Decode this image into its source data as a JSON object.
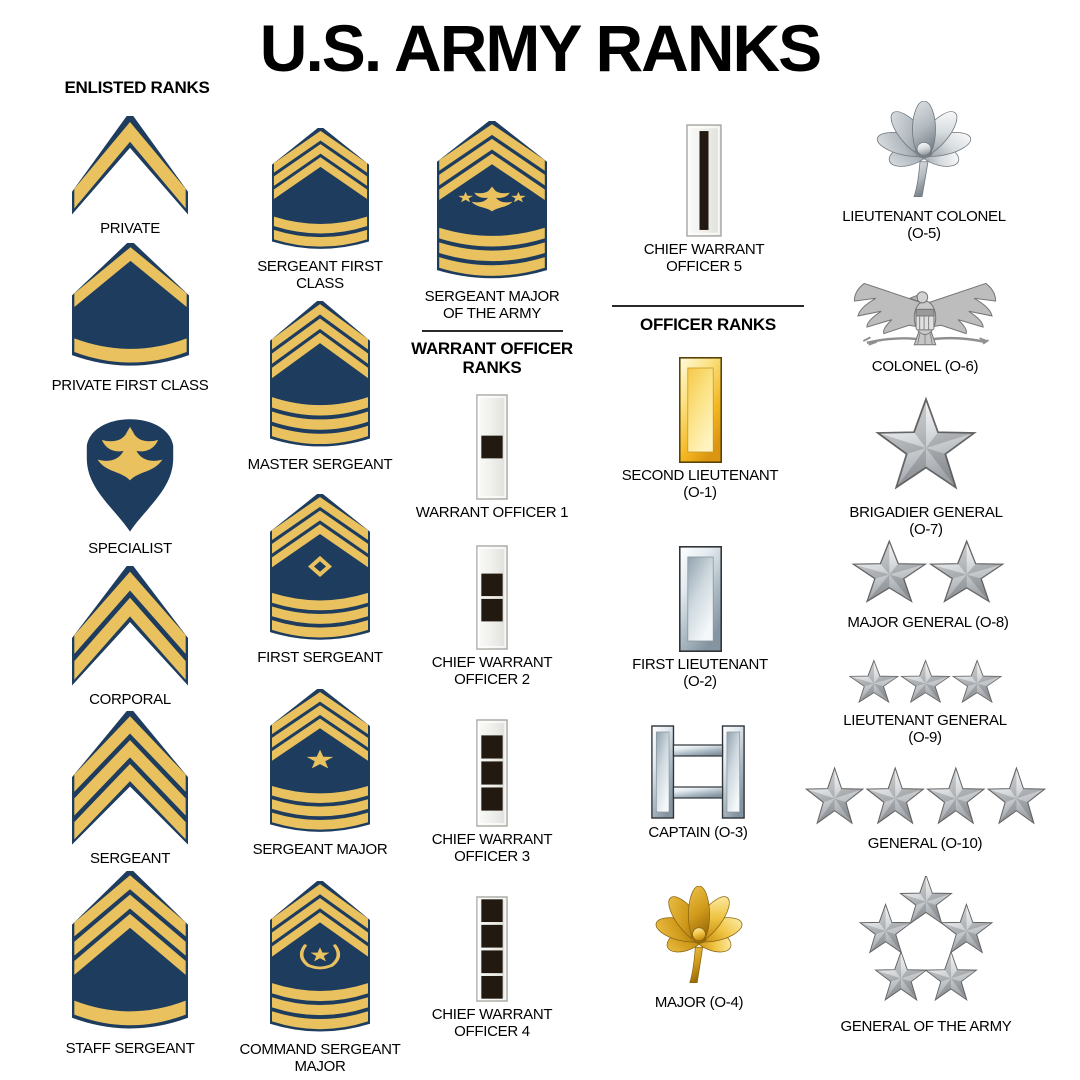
{
  "title": "U.S. ARMY RANKS",
  "colors": {
    "navy": "#1e3c5e",
    "gold": "#e9c25f",
    "black_square": "#221910",
    "silver_light": "#ffffff",
    "silver_dark": "#9fa4a9",
    "gold_bar_light": "#fdeca0",
    "gold_bar_dark": "#eca619",
    "eagle_gray": "#bdbdbd",
    "text": "#000000"
  },
  "columns": [
    {
      "items": [
        {
          "id": "enlisted-header",
          "type": "section",
          "label": "ENLISTED RANKS"
        },
        {
          "id": "private",
          "type": "rank",
          "label": "PRIVATE",
          "insignia": {
            "type": "chevron",
            "chevrons": 1,
            "rockers": 0
          }
        },
        {
          "id": "pfc",
          "type": "rank",
          "label": "PRIVATE FIRST CLASS",
          "insignia": {
            "type": "chevron",
            "chevrons": 1,
            "rockers": 1
          }
        },
        {
          "id": "specialist",
          "type": "rank",
          "label": "SPECIALIST",
          "insignia": {
            "type": "specialist-eagle"
          }
        },
        {
          "id": "corporal",
          "type": "rank",
          "label": "CORPORAL",
          "insignia": {
            "type": "chevron",
            "chevrons": 2,
            "rockers": 0
          }
        },
        {
          "id": "sergeant",
          "type": "rank",
          "label": "SERGEANT",
          "insignia": {
            "type": "chevron",
            "chevrons": 3,
            "rockers": 0
          }
        },
        {
          "id": "staff-sergeant",
          "type": "rank",
          "label": "STAFF SERGEANT",
          "insignia": {
            "type": "chevron",
            "chevrons": 3,
            "rockers": 1
          }
        }
      ]
    },
    {
      "items": [
        {
          "id": "sfc",
          "type": "rank",
          "label": "SERGEANT FIRST\nCLASS",
          "insignia": {
            "type": "chevron",
            "chevrons": 3,
            "rockers": 2
          }
        },
        {
          "id": "master-sergeant",
          "type": "rank",
          "label": "MASTER SERGEANT",
          "insignia": {
            "type": "chevron",
            "chevrons": 3,
            "rockers": 3
          }
        },
        {
          "id": "first-sergeant",
          "type": "rank",
          "label": "FIRST SERGEANT",
          "insignia": {
            "type": "chevron",
            "chevrons": 3,
            "rockers": 3,
            "device": "diamond"
          }
        },
        {
          "id": "sergeant-major",
          "type": "rank",
          "label": "SERGEANT MAJOR",
          "insignia": {
            "type": "chevron",
            "chevrons": 3,
            "rockers": 3,
            "device": "star"
          }
        },
        {
          "id": "csm",
          "type": "rank",
          "label": "COMMAND SERGEANT\nMAJOR",
          "insignia": {
            "type": "chevron",
            "chevrons": 3,
            "rockers": 3,
            "device": "wreath-star"
          }
        }
      ]
    },
    {
      "items": [
        {
          "id": "sma",
          "type": "rank",
          "label": "SERGEANT MAJOR\nOF THE ARMY",
          "insignia": {
            "type": "chevron",
            "chevrons": 3,
            "rockers": 3,
            "device": "eagle-stars"
          }
        },
        {
          "id": "warrant-header",
          "type": "section",
          "label": "WARRANT OFFICER\nRANKS"
        },
        {
          "id": "wo1",
          "type": "rank",
          "label": "WARRANT OFFICER 1",
          "insignia": {
            "type": "wo-bar",
            "squares": 1
          }
        },
        {
          "id": "cwo2",
          "type": "rank",
          "label": "CHIEF WARRANT\nOFFICER 2",
          "insignia": {
            "type": "wo-bar",
            "squares": 2
          }
        },
        {
          "id": "cwo3",
          "type": "rank",
          "label": "CHIEF WARRANT\nOFFICER 3",
          "insignia": {
            "type": "wo-bar",
            "squares": 3
          }
        },
        {
          "id": "cwo4",
          "type": "rank",
          "label": "CHIEF WARRANT\nOFFICER 4",
          "insignia": {
            "type": "wo-bar",
            "squares": 4
          }
        }
      ]
    },
    {
      "items": [
        {
          "id": "cwo5",
          "type": "rank",
          "label": "CHIEF WARRANT\nOFFICER 5",
          "insignia": {
            "type": "wo-bar",
            "stripe": true
          }
        },
        {
          "id": "officer-header",
          "type": "section",
          "label": "OFFICER RANKS"
        },
        {
          "id": "second-lieutenant",
          "type": "rank",
          "label": "SECOND LIEUTENANT\n(O-1)",
          "insignia": {
            "type": "rank-bar",
            "finish": "gold"
          }
        },
        {
          "id": "first-lieutenant",
          "type": "rank",
          "label": "FIRST LIEUTENANT\n(O-2)",
          "insignia": {
            "type": "rank-bar",
            "finish": "silver"
          }
        },
        {
          "id": "captain",
          "type": "rank",
          "label": "CAPTAIN (O-3)",
          "insignia": {
            "type": "captain-bars"
          }
        },
        {
          "id": "major",
          "type": "rank",
          "label": "MAJOR (O-4)",
          "insignia": {
            "type": "oak-leaf",
            "finish": "gold"
          }
        }
      ]
    },
    {
      "items": [
        {
          "id": "ltc",
          "type": "rank",
          "label": "LIEUTENANT COLONEL\n(O-5)",
          "insignia": {
            "type": "oak-leaf",
            "finish": "silver"
          }
        },
        {
          "id": "colonel",
          "type": "rank",
          "label": "COLONEL (O-6)",
          "insignia": {
            "type": "colonel-eagle"
          }
        },
        {
          "id": "brigadier-general",
          "type": "rank",
          "label": "BRIGADIER GENERAL\n(O-7)",
          "insignia": {
            "type": "stars",
            "count": 1
          }
        },
        {
          "id": "major-general",
          "type": "rank",
          "label": "MAJOR GENERAL (O-8)",
          "insignia": {
            "type": "stars",
            "count": 2
          }
        },
        {
          "id": "lieutenant-general",
          "type": "rank",
          "label": "LIEUTENANT GENERAL\n(O-9)",
          "insignia": {
            "type": "stars",
            "count": 3
          }
        },
        {
          "id": "general",
          "type": "rank",
          "label": "GENERAL (O-10)",
          "insignia": {
            "type": "stars",
            "count": 4
          }
        },
        {
          "id": "general-of-the-army",
          "type": "rank",
          "label": "GENERAL OF THE ARMY",
          "insignia": {
            "type": "star-circle",
            "count": 5
          }
        }
      ]
    }
  ]
}
